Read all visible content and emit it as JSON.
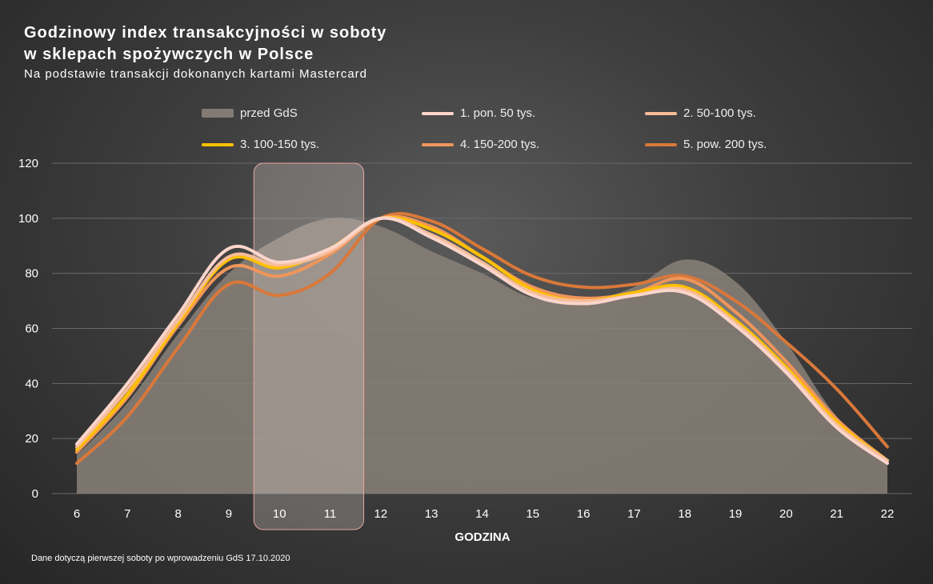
{
  "title_line1": "Godzinowy index transakcyjności w soboty",
  "title_line2": "w sklepach spożywczych w Polsce",
  "subtitle": "Na podstawie transakcji dokonanych kartami Mastercard",
  "footer": "Dane dotyczą pierwszej soboty po wprowadzeniu GdS 17.10.2020",
  "chart_data": {
    "type": "line",
    "xlabel": "GODZINA",
    "ylabel": "",
    "ylim": [
      0,
      120
    ],
    "yticks": [
      0,
      20,
      40,
      60,
      80,
      100,
      120
    ],
    "x": [
      6,
      7,
      8,
      9,
      10,
      11,
      12,
      13,
      14,
      15,
      16,
      17,
      18,
      19,
      20,
      21,
      22
    ],
    "highlight_range": [
      10,
      11
    ],
    "grid": "horizontal",
    "legend_position": "top",
    "series": [
      {
        "name": "przed GdS",
        "kind": "area",
        "color": "#8a8179",
        "values": [
          14,
          33,
          58,
          80,
          93,
          100,
          97,
          88,
          80,
          71,
          70,
          75,
          85,
          77,
          55,
          28,
          12
        ]
      },
      {
        "name": "1. pon. 50 tys.",
        "kind": "line",
        "color": "#fbd5cb",
        "values": [
          18,
          40,
          65,
          89,
          84,
          89,
          100,
          93,
          83,
          72,
          69,
          72,
          73,
          61,
          44,
          24,
          11
        ]
      },
      {
        "name": "2. 50-100 tys.",
        "kind": "line",
        "color": "#f6bd99",
        "values": [
          17,
          38,
          63,
          86,
          83,
          88,
          100,
          94,
          84,
          73,
          70,
          72,
          74,
          62,
          45,
          25,
          12
        ]
      },
      {
        "name": "3. 100-150 tys.",
        "kind": "line",
        "color": "#ffc000",
        "values": [
          16,
          36,
          62,
          85,
          82,
          89,
          100,
          96,
          86,
          74,
          70,
          73,
          75,
          63,
          46,
          26,
          12
        ]
      },
      {
        "name": "4. 150-200 tys.",
        "kind": "line",
        "color": "#f0955a",
        "values": [
          15,
          35,
          61,
          82,
          79,
          87,
          100,
          97,
          86,
          75,
          71,
          73,
          78,
          66,
          48,
          27,
          12
        ]
      },
      {
        "name": "5. pow. 200 tys.",
        "kind": "line",
        "color": "#d9783a",
        "values": [
          11,
          28,
          53,
          76,
          72,
          80,
          100,
          99,
          89,
          79,
          75,
          76,
          79,
          70,
          55,
          38,
          17
        ]
      }
    ]
  }
}
